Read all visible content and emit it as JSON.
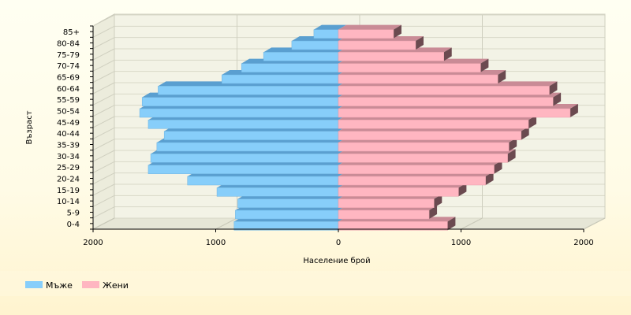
{
  "chart_data": {
    "type": "bar",
    "orientation": "horizontal",
    "style": "population-pyramid-3d",
    "xlabel": "Население брой",
    "ylabel": "Възраст",
    "xlim": [
      -2000,
      2000
    ],
    "x_ticks": [
      "2000",
      "1000",
      "0",
      "1000",
      "2000"
    ],
    "categories": [
      "0-4",
      "5-9",
      "10-14",
      "15-19",
      "20-24",
      "25-29",
      "30-34",
      "35-39",
      "40-44",
      "45-49",
      "50-54",
      "55-59",
      "60-64",
      "65-69",
      "70-74",
      "75-79",
      "80-84",
      "85+"
    ],
    "series": [
      {
        "name": "Мъже",
        "color": "#87cefa",
        "values": [
          850,
          840,
          820,
          990,
          1230,
          1550,
          1530,
          1480,
          1420,
          1550,
          1620,
          1600,
          1470,
          950,
          790,
          610,
          380,
          200
        ]
      },
      {
        "name": "Жени",
        "color": "#ffb6c1",
        "values": [
          890,
          740,
          780,
          980,
          1200,
          1270,
          1380,
          1390,
          1490,
          1550,
          1890,
          1750,
          1720,
          1300,
          1160,
          860,
          630,
          450
        ]
      }
    ],
    "legend": "bottom-left",
    "grid": true
  }
}
